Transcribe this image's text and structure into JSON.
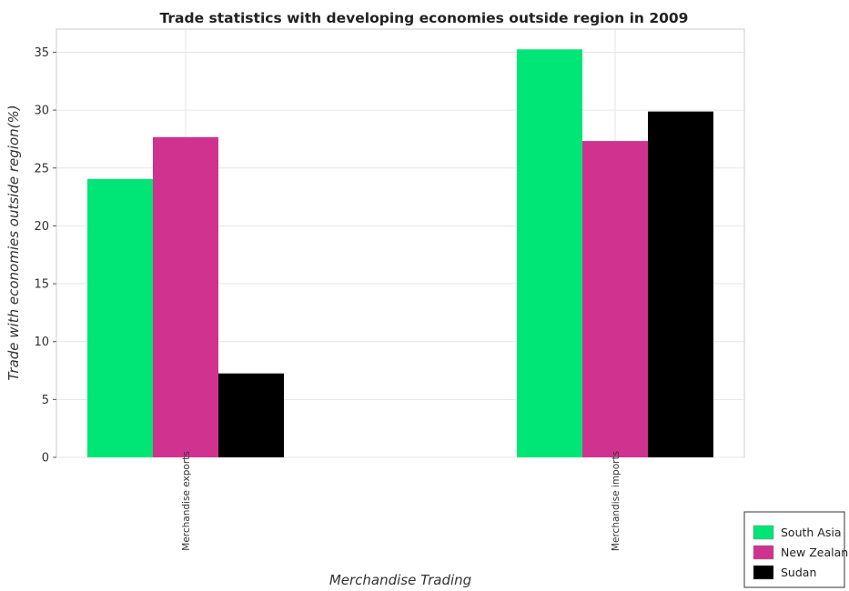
{
  "chart_data": {
    "type": "bar",
    "title": "Trade statistics with developing economies outside region in 2009",
    "xlabel": "Merchandise Trading",
    "ylabel": "Trade with economies outside region(%)",
    "categories": [
      "Merchandise exports",
      "Merchandise imports"
    ],
    "series": [
      {
        "name": "South Asia",
        "color": "#00e676",
        "values": [
          24.05,
          35.25
        ]
      },
      {
        "name": "New Zealand",
        "color": "#d0338f",
        "values": [
          27.67,
          27.33
        ]
      },
      {
        "name": "Sudan",
        "color": "#000000",
        "values": [
          7.25,
          29.88
        ]
      }
    ],
    "ylim": [
      0,
      37
    ],
    "yticks": [
      0,
      5,
      10,
      15,
      20,
      25,
      30,
      35
    ],
    "grid": true,
    "legend_position": "bottom-right"
  }
}
